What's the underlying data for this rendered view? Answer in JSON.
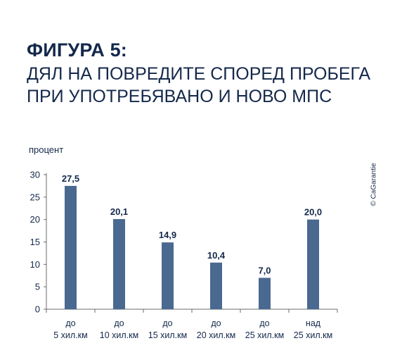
{
  "header": {
    "figure_label": "ФИГУРА 5:",
    "title": "ДЯЛ НА ПОВРЕДИТЕ СПОРЕД ПРОБЕГА ПРИ УПОТРЕБЯВАНО И НОВО МПС"
  },
  "copyright": "© CaGarantie",
  "colors": {
    "bar": "#4a6990",
    "text": "#14284b",
    "axis": "#6b6b6b"
  },
  "chart_data": {
    "type": "bar",
    "ylabel": "процент",
    "xlabel": "",
    "ylim": [
      0,
      30
    ],
    "yticks": [
      0,
      5,
      10,
      15,
      20,
      25,
      30
    ],
    "categories": [
      [
        "до",
        "5 хил.км"
      ],
      [
        "до",
        "10 хил.км"
      ],
      [
        "до",
        "15 хил.км"
      ],
      [
        "до",
        "20 хил.км"
      ],
      [
        "до",
        "25 хил.км"
      ],
      [
        "над",
        "25 хил.км"
      ]
    ],
    "values": [
      27.5,
      20.1,
      14.9,
      10.4,
      7.0,
      20.0
    ],
    "value_labels": [
      "27,5",
      "20,1",
      "14,9",
      "10,4",
      "7,0",
      "20,0"
    ],
    "grid": false
  }
}
